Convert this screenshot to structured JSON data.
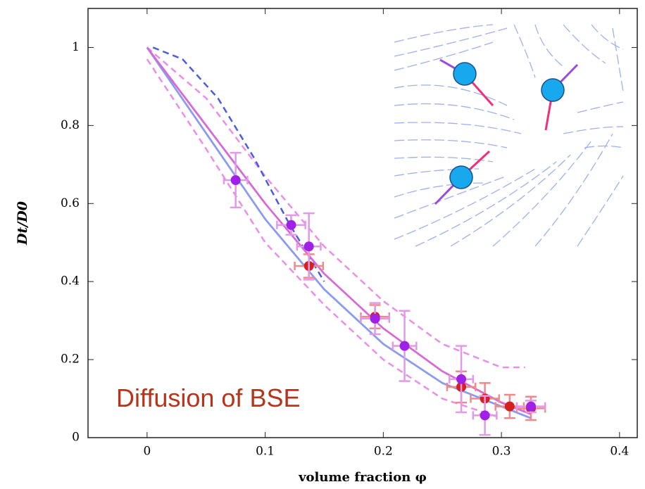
{
  "chart_data": {
    "type": "scatter",
    "x_label": "volume fraction φ",
    "y_label": "Dt/D0",
    "annotation": "Diffusion of BSE",
    "xlim": [
      -0.05,
      0.415
    ],
    "ylim": [
      0,
      1.1
    ],
    "xticks": [
      0,
      0.1,
      0.2,
      0.3,
      0.4
    ],
    "yticks": [
      0,
      0.2,
      0.4,
      0.6,
      0.8,
      1
    ],
    "lines": [
      {
        "style": "dashed",
        "color": "#e98ee9",
        "x": [
          0,
          0.05,
          0.1,
          0.15,
          0.2,
          0.25,
          0.3,
          0.32
        ],
        "values": [
          1,
          0.87,
          0.67,
          0.49,
          0.35,
          0.24,
          0.18,
          0.18
        ]
      },
      {
        "style": "dashed",
        "color": "#e98ee9",
        "x": [
          0,
          0.05,
          0.1,
          0.15,
          0.2,
          0.25,
          0.3
        ],
        "values": [
          0.97,
          0.74,
          0.5,
          0.34,
          0.2,
          0.1,
          0.05
        ]
      },
      {
        "style": "dashed",
        "color": "#4a5ce0",
        "x": [
          0.005,
          0.03,
          0.06,
          0.09,
          0.12,
          0.15
        ],
        "values": [
          1,
          0.97,
          0.87,
          0.72,
          0.55,
          0.4
        ]
      },
      {
        "style": "solid",
        "color": "#8a9cf0",
        "x": [
          0,
          0.05,
          0.1,
          0.15,
          0.2,
          0.25,
          0.3,
          0.325
        ],
        "values": [
          1,
          0.78,
          0.56,
          0.38,
          0.24,
          0.14,
          0.08,
          0.05
        ]
      },
      {
        "style": "solid",
        "color": "#d86ad8",
        "x": [
          0,
          0.05,
          0.1,
          0.15,
          0.2,
          0.25,
          0.3,
          0.325
        ],
        "values": [
          1,
          0.8,
          0.6,
          0.42,
          0.28,
          0.17,
          0.09,
          0.06
        ]
      }
    ],
    "series": [
      {
        "color": "#f08a8a",
        "marker": "#d62020",
        "x": [
          0.137,
          0.193,
          0.266,
          0.286,
          0.307,
          0.325
        ],
        "values": [
          0.44,
          0.31,
          0.13,
          0.1,
          0.08,
          0.075
        ],
        "yerr": [
          0.03,
          0.03,
          0.04,
          0.04,
          0.03,
          0.03
        ],
        "xerr": [
          0.012,
          0.012,
          0.012,
          0.012,
          0.012,
          0.012
        ]
      },
      {
        "color": "#e29ae8",
        "marker": "#a020e8",
        "x": [
          0.075,
          0.122,
          0.137,
          0.193,
          0.218,
          0.266,
          0.286,
          0.325
        ],
        "values": [
          0.66,
          0.545,
          0.49,
          0.305,
          0.235,
          0.15,
          0.057,
          0.08
        ],
        "yerr": [
          0.07,
          0.025,
          0.085,
          0.04,
          0.09,
          0.085,
          0.05,
          0.015
        ],
        "xerr": [
          0.01,
          0.012,
          0.01,
          0.012,
          0.01,
          0.01,
          0.01,
          0.012
        ]
      }
    ]
  }
}
